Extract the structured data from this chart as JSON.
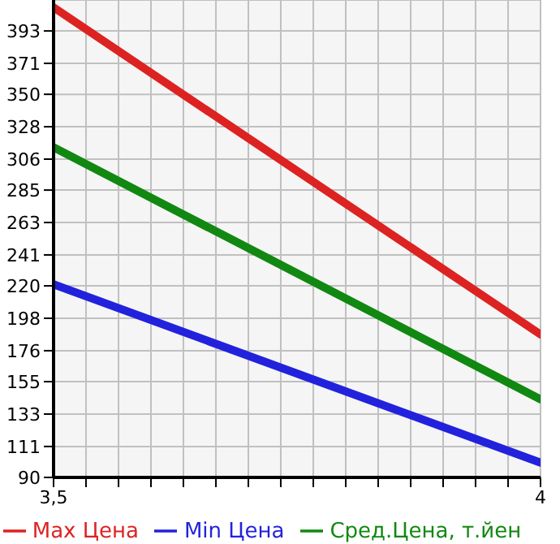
{
  "chart_data": {
    "type": "line",
    "x": [
      3.5,
      4
    ],
    "series": [
      {
        "name": "Max Цена",
        "color": "#dd2222",
        "values": [
          409,
          187
        ]
      },
      {
        "name": "Min Цена",
        "color": "#2222dd",
        "values": [
          221,
          100
        ]
      },
      {
        "name": "Сред.Цена, т.йен",
        "color": "#118811",
        "values": [
          314,
          143
        ]
      }
    ],
    "xlim": [
      3.5,
      4
    ],
    "xticks": [
      {
        "value": 3.5,
        "label": "3,5"
      },
      {
        "value": 3.5333,
        "label": null
      },
      {
        "value": 3.5667,
        "label": null
      },
      {
        "value": 3.6,
        "label": null
      },
      {
        "value": 3.6333,
        "label": null
      },
      {
        "value": 3.6667,
        "label": null
      },
      {
        "value": 3.7,
        "label": null
      },
      {
        "value": 3.7333,
        "label": null
      },
      {
        "value": 3.7667,
        "label": null
      },
      {
        "value": 3.8,
        "label": null
      },
      {
        "value": 3.8333,
        "label": null
      },
      {
        "value": 3.8667,
        "label": null
      },
      {
        "value": 3.9,
        "label": null
      },
      {
        "value": 3.9333,
        "label": null
      },
      {
        "value": 3.9667,
        "label": null
      },
      {
        "value": 4,
        "label": "4"
      }
    ],
    "ylim": [
      90,
      414
    ],
    "yticks": [
      90,
      111,
      133,
      155,
      176,
      198,
      220,
      241,
      263,
      285,
      306,
      328,
      350,
      371,
      393
    ],
    "grid": true,
    "legend": "bottom",
    "marker": "none",
    "line_style": "solid"
  }
}
